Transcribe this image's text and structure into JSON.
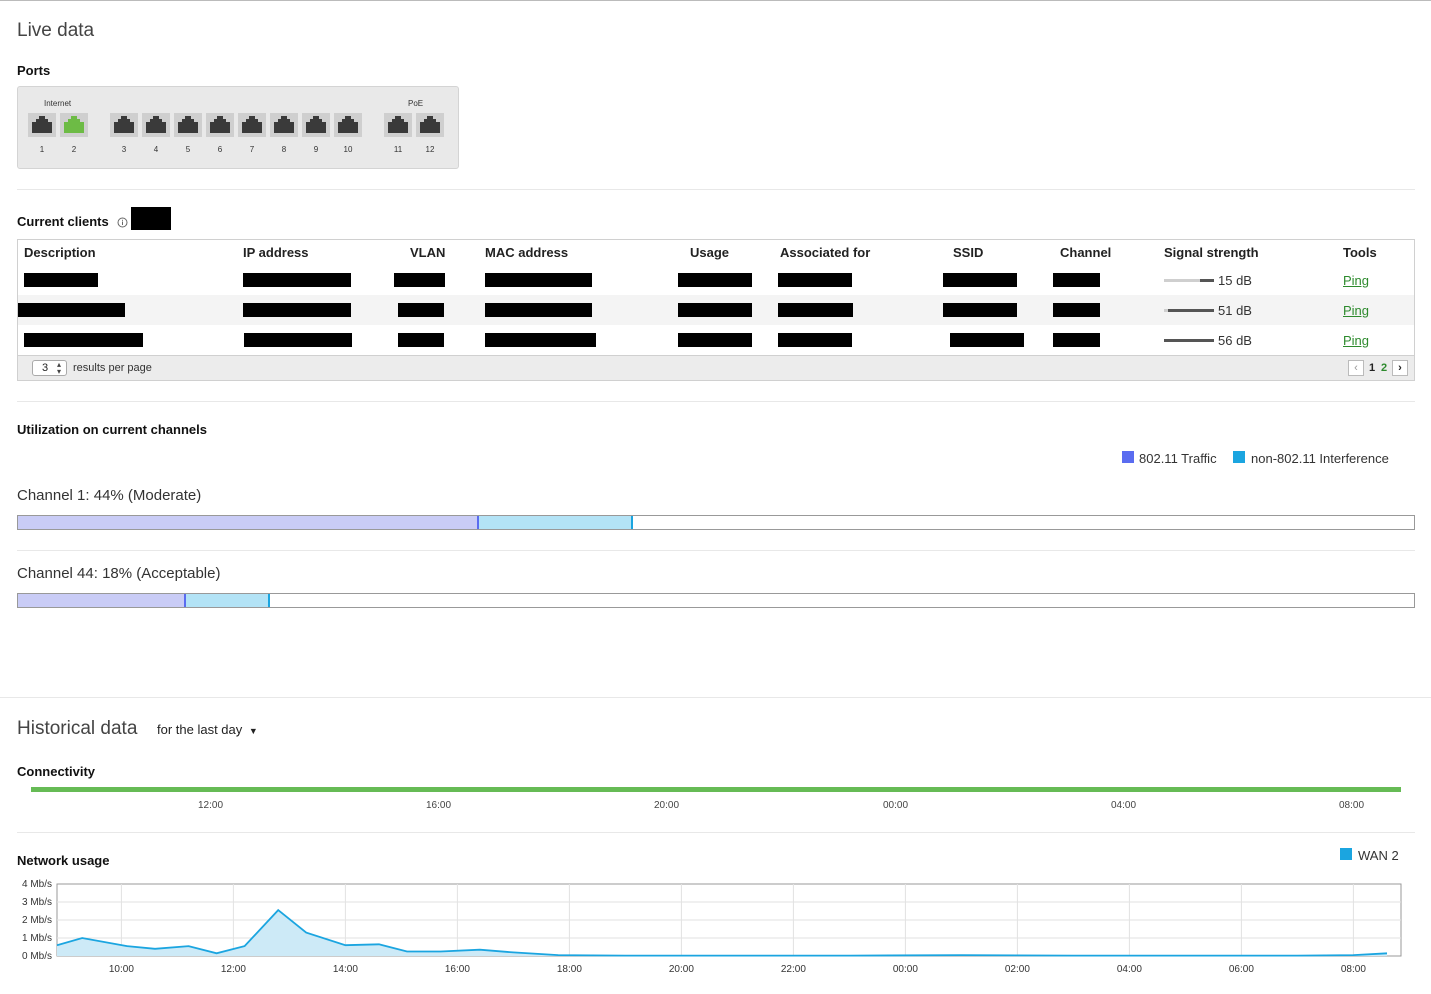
{
  "live": {
    "title": "Live data",
    "ports": {
      "title": "Ports",
      "groups": [
        {
          "label": "Internet",
          "ports": [
            {
              "num": "1",
              "active": false
            },
            {
              "num": "2",
              "active": true
            }
          ]
        },
        {
          "label": "",
          "ports": [
            {
              "num": "3",
              "active": false
            },
            {
              "num": "4",
              "active": false
            },
            {
              "num": "5",
              "active": false
            },
            {
              "num": "6",
              "active": false
            },
            {
              "num": "7",
              "active": false
            },
            {
              "num": "8",
              "active": false
            },
            {
              "num": "9",
              "active": false
            },
            {
              "num": "10",
              "active": false
            }
          ]
        },
        {
          "label": "PoE",
          "ports": [
            {
              "num": "11",
              "active": false
            },
            {
              "num": "12",
              "active": false
            }
          ]
        }
      ]
    },
    "clients": {
      "title": "Current clients",
      "info_icon": "info-icon",
      "columns": [
        "Description",
        "IP address",
        "VLAN",
        "MAC address",
        "Usage",
        "Associated for",
        "SSID",
        "Channel",
        "Signal strength",
        "Tools"
      ],
      "rows": [
        {
          "signal": "15 dB",
          "signal_level": 0.27,
          "tool": "Ping"
        },
        {
          "signal": "51 dB",
          "signal_level": 0.91,
          "tool": "Ping"
        },
        {
          "signal": "56 dB",
          "signal_level": 1.0,
          "tool": "Ping"
        }
      ],
      "per_page_value": "3",
      "per_page_label": "results per page",
      "pages": [
        "1",
        "2"
      ],
      "current_page": "1"
    },
    "utilization": {
      "title": "Utilization on current channels",
      "legend": [
        {
          "label": "802.11 Traffic",
          "color": "#5a6cf0"
        },
        {
          "label": "non-802.11 Interference",
          "color": "#1ba5e0"
        }
      ],
      "channels": [
        {
          "label": "Channel 1: 44% (Moderate)",
          "traffic_pct": 33,
          "interference_pct": 11
        },
        {
          "label": "Channel 44: 18% (Acceptable)",
          "traffic_pct": 12,
          "interference_pct": 6
        }
      ]
    }
  },
  "historical": {
    "title": "Historical data",
    "range_label": "for the last day",
    "connectivity": {
      "title": "Connectivity",
      "ticks": [
        "12:00",
        "16:00",
        "20:00",
        "00:00",
        "04:00",
        "08:00"
      ],
      "status_color": "#66bb55"
    },
    "network_usage": {
      "title": "Network usage"
    }
  },
  "chart_data": {
    "type": "area",
    "title": "Network usage",
    "xlabel": "",
    "ylabel": "",
    "y_ticks": [
      "4 Mb/s",
      "3 Mb/s",
      "2 Mb/s",
      "1 Mb/s",
      "0 Mb/s"
    ],
    "ylim": [
      0,
      4
    ],
    "x_ticks": [
      "10:00",
      "12:00",
      "14:00",
      "16:00",
      "18:00",
      "20:00",
      "22:00",
      "00:00",
      "02:00",
      "04:00",
      "06:00",
      "08:00"
    ],
    "x_hours": [
      8.85,
      9.3,
      10.1,
      10.6,
      11.2,
      11.7,
      12.2,
      12.8,
      13.3,
      14.0,
      14.6,
      15.1,
      15.7,
      16.4,
      17.0,
      17.8,
      19.0,
      21.0,
      23.0,
      25.0,
      27.0,
      29.0,
      31.0,
      32.0,
      32.6
    ],
    "series": [
      {
        "name": "WAN 2",
        "color": "#1ba5e0",
        "values": [
          0.6,
          1.0,
          0.55,
          0.4,
          0.55,
          0.15,
          0.55,
          2.55,
          1.3,
          0.6,
          0.65,
          0.25,
          0.25,
          0.35,
          0.2,
          0.05,
          0.02,
          0.02,
          0.02,
          0.05,
          0.02,
          0.02,
          0.02,
          0.05,
          0.15
        ]
      }
    ],
    "grid": true,
    "legend_position": "top-right"
  }
}
